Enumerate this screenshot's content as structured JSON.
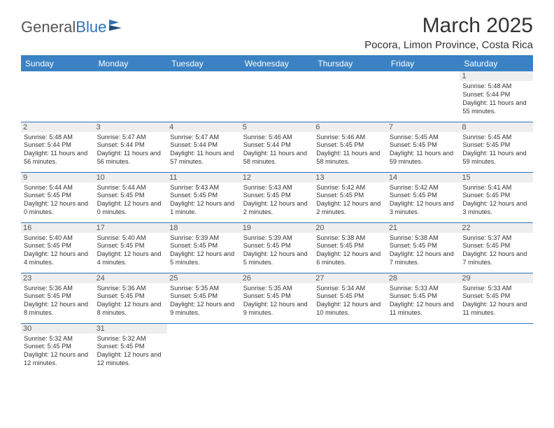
{
  "brand": {
    "part1": "General",
    "part2": "Blue"
  },
  "title": "March 2025",
  "location": "Pocora, Limon Province, Costa Rica",
  "colors": {
    "header_bg": "#3b82c4",
    "header_text": "#ffffff",
    "border": "#2e74b5",
    "daynum_bg": "#eeeeee",
    "text": "#333333"
  },
  "fonts": {
    "title_size": 30,
    "location_size": 15,
    "header_size": 12,
    "daynum_size": 11,
    "info_size": 9.2
  },
  "weekdays": [
    "Sunday",
    "Monday",
    "Tuesday",
    "Wednesday",
    "Thursday",
    "Friday",
    "Saturday"
  ],
  "weeks": [
    [
      {
        "n": "",
        "sr": "",
        "ss": "",
        "dl": ""
      },
      {
        "n": "",
        "sr": "",
        "ss": "",
        "dl": ""
      },
      {
        "n": "",
        "sr": "",
        "ss": "",
        "dl": ""
      },
      {
        "n": "",
        "sr": "",
        "ss": "",
        "dl": ""
      },
      {
        "n": "",
        "sr": "",
        "ss": "",
        "dl": ""
      },
      {
        "n": "",
        "sr": "",
        "ss": "",
        "dl": ""
      },
      {
        "n": "1",
        "sr": "Sunrise: 5:48 AM",
        "ss": "Sunset: 5:44 PM",
        "dl": "Daylight: 11 hours and 55 minutes."
      }
    ],
    [
      {
        "n": "2",
        "sr": "Sunrise: 5:48 AM",
        "ss": "Sunset: 5:44 PM",
        "dl": "Daylight: 11 hours and 56 minutes."
      },
      {
        "n": "3",
        "sr": "Sunrise: 5:47 AM",
        "ss": "Sunset: 5:44 PM",
        "dl": "Daylight: 11 hours and 56 minutes."
      },
      {
        "n": "4",
        "sr": "Sunrise: 5:47 AM",
        "ss": "Sunset: 5:44 PM",
        "dl": "Daylight: 11 hours and 57 minutes."
      },
      {
        "n": "5",
        "sr": "Sunrise: 5:46 AM",
        "ss": "Sunset: 5:44 PM",
        "dl": "Daylight: 11 hours and 58 minutes."
      },
      {
        "n": "6",
        "sr": "Sunrise: 5:46 AM",
        "ss": "Sunset: 5:45 PM",
        "dl": "Daylight: 11 hours and 58 minutes."
      },
      {
        "n": "7",
        "sr": "Sunrise: 5:45 AM",
        "ss": "Sunset: 5:45 PM",
        "dl": "Daylight: 11 hours and 59 minutes."
      },
      {
        "n": "8",
        "sr": "Sunrise: 5:45 AM",
        "ss": "Sunset: 5:45 PM",
        "dl": "Daylight: 11 hours and 59 minutes."
      }
    ],
    [
      {
        "n": "9",
        "sr": "Sunrise: 5:44 AM",
        "ss": "Sunset: 5:45 PM",
        "dl": "Daylight: 12 hours and 0 minutes."
      },
      {
        "n": "10",
        "sr": "Sunrise: 5:44 AM",
        "ss": "Sunset: 5:45 PM",
        "dl": "Daylight: 12 hours and 0 minutes."
      },
      {
        "n": "11",
        "sr": "Sunrise: 5:43 AM",
        "ss": "Sunset: 5:45 PM",
        "dl": "Daylight: 12 hours and 1 minute."
      },
      {
        "n": "12",
        "sr": "Sunrise: 5:43 AM",
        "ss": "Sunset: 5:45 PM",
        "dl": "Daylight: 12 hours and 2 minutes."
      },
      {
        "n": "13",
        "sr": "Sunrise: 5:42 AM",
        "ss": "Sunset: 5:45 PM",
        "dl": "Daylight: 12 hours and 2 minutes."
      },
      {
        "n": "14",
        "sr": "Sunrise: 5:42 AM",
        "ss": "Sunset: 5:45 PM",
        "dl": "Daylight: 12 hours and 3 minutes."
      },
      {
        "n": "15",
        "sr": "Sunrise: 5:41 AM",
        "ss": "Sunset: 5:45 PM",
        "dl": "Daylight: 12 hours and 3 minutes."
      }
    ],
    [
      {
        "n": "16",
        "sr": "Sunrise: 5:40 AM",
        "ss": "Sunset: 5:45 PM",
        "dl": "Daylight: 12 hours and 4 minutes."
      },
      {
        "n": "17",
        "sr": "Sunrise: 5:40 AM",
        "ss": "Sunset: 5:45 PM",
        "dl": "Daylight: 12 hours and 4 minutes."
      },
      {
        "n": "18",
        "sr": "Sunrise: 5:39 AM",
        "ss": "Sunset: 5:45 PM",
        "dl": "Daylight: 12 hours and 5 minutes."
      },
      {
        "n": "19",
        "sr": "Sunrise: 5:39 AM",
        "ss": "Sunset: 5:45 PM",
        "dl": "Daylight: 12 hours and 5 minutes."
      },
      {
        "n": "20",
        "sr": "Sunrise: 5:38 AM",
        "ss": "Sunset: 5:45 PM",
        "dl": "Daylight: 12 hours and 6 minutes."
      },
      {
        "n": "21",
        "sr": "Sunrise: 5:38 AM",
        "ss": "Sunset: 5:45 PM",
        "dl": "Daylight: 12 hours and 7 minutes."
      },
      {
        "n": "22",
        "sr": "Sunrise: 5:37 AM",
        "ss": "Sunset: 5:45 PM",
        "dl": "Daylight: 12 hours and 7 minutes."
      }
    ],
    [
      {
        "n": "23",
        "sr": "Sunrise: 5:36 AM",
        "ss": "Sunset: 5:45 PM",
        "dl": "Daylight: 12 hours and 8 minutes."
      },
      {
        "n": "24",
        "sr": "Sunrise: 5:36 AM",
        "ss": "Sunset: 5:45 PM",
        "dl": "Daylight: 12 hours and 8 minutes."
      },
      {
        "n": "25",
        "sr": "Sunrise: 5:35 AM",
        "ss": "Sunset: 5:45 PM",
        "dl": "Daylight: 12 hours and 9 minutes."
      },
      {
        "n": "26",
        "sr": "Sunrise: 5:35 AM",
        "ss": "Sunset: 5:45 PM",
        "dl": "Daylight: 12 hours and 9 minutes."
      },
      {
        "n": "27",
        "sr": "Sunrise: 5:34 AM",
        "ss": "Sunset: 5:45 PM",
        "dl": "Daylight: 12 hours and 10 minutes."
      },
      {
        "n": "28",
        "sr": "Sunrise: 5:33 AM",
        "ss": "Sunset: 5:45 PM",
        "dl": "Daylight: 12 hours and 11 minutes."
      },
      {
        "n": "29",
        "sr": "Sunrise: 5:33 AM",
        "ss": "Sunset: 5:45 PM",
        "dl": "Daylight: 12 hours and 11 minutes."
      }
    ],
    [
      {
        "n": "30",
        "sr": "Sunrise: 5:32 AM",
        "ss": "Sunset: 5:45 PM",
        "dl": "Daylight: 12 hours and 12 minutes."
      },
      {
        "n": "31",
        "sr": "Sunrise: 5:32 AM",
        "ss": "Sunset: 5:45 PM",
        "dl": "Daylight: 12 hours and 12 minutes."
      },
      {
        "n": "",
        "sr": "",
        "ss": "",
        "dl": ""
      },
      {
        "n": "",
        "sr": "",
        "ss": "",
        "dl": ""
      },
      {
        "n": "",
        "sr": "",
        "ss": "",
        "dl": ""
      },
      {
        "n": "",
        "sr": "",
        "ss": "",
        "dl": ""
      },
      {
        "n": "",
        "sr": "",
        "ss": "",
        "dl": ""
      }
    ]
  ]
}
